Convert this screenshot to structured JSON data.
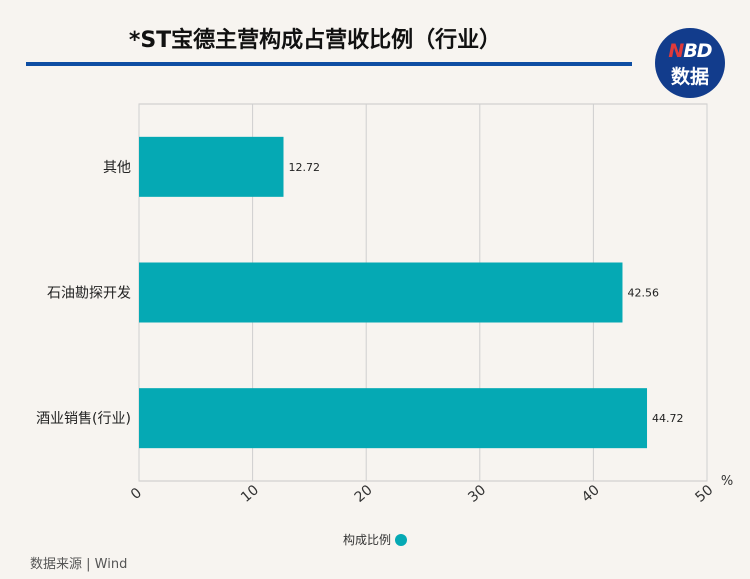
{
  "header": {
    "title": "*ST宝德主营构成占营收比例（行业）",
    "logo_line1_a": "N",
    "logo_line1_b": "BD",
    "logo_line2": "数据"
  },
  "chart_data": {
    "type": "bar",
    "orientation": "horizontal",
    "categories": [
      "其他",
      "石油勘探开发",
      "酒业销售(行业)"
    ],
    "series": [
      {
        "name": "构成比例",
        "values": [
          12.72,
          42.56,
          44.72
        ]
      }
    ],
    "xlim": [
      0,
      50
    ],
    "x_ticks": [
      0,
      10,
      20,
      30,
      40,
      50
    ],
    "x_unit": "%",
    "grid": true,
    "bar_color": "#05a9b4",
    "legend_position": "bottom"
  },
  "legend": {
    "label": "构成比例"
  },
  "footer": {
    "source": "数据来源 | Wind"
  }
}
